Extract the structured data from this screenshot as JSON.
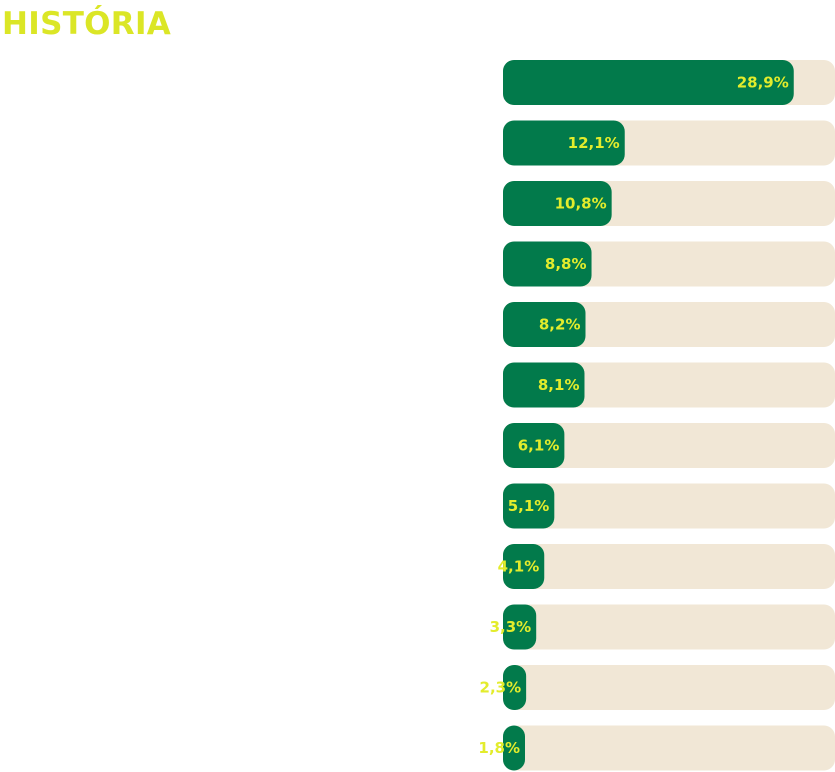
{
  "colors": {
    "title": "#dbe626",
    "bar_fill": "#027a4b",
    "bar_track": "#f1e7d6",
    "bar_label": "#e3ec2c"
  },
  "header": {
    "title": "HISTÓRIA"
  },
  "chart_data": {
    "type": "bar",
    "orientation": "horizontal",
    "title": "HISTÓRIA",
    "categories": [],
    "values": [
      28.9,
      12.1,
      10.8,
      8.8,
      8.2,
      8.1,
      6.1,
      5.1,
      4.1,
      3.3,
      2.3,
      1.8
    ],
    "labels": [
      "28,9%",
      "12,1%",
      "10,8%",
      "8,8%",
      "8,2%",
      "8,1%",
      "6,1%",
      "5,1%",
      "4,1%",
      "3,3%",
      "2,3%",
      "1,8%"
    ],
    "xlim": [
      0,
      33
    ],
    "unit": "%",
    "grid": false,
    "legend": "none"
  }
}
